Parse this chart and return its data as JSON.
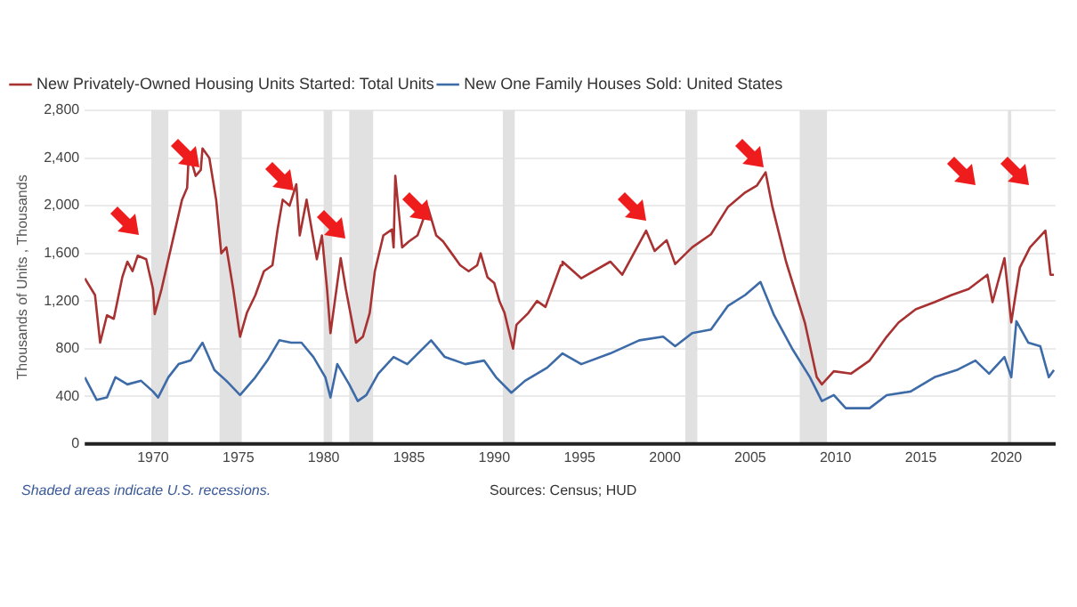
{
  "chart_data": {
    "type": "line",
    "ylabel": "Thousands of Units , Thousands",
    "xlim": [
      1966,
      2022.9
    ],
    "xticks": [
      1970,
      1975,
      1980,
      1985,
      1990,
      1995,
      2000,
      2005,
      2010,
      2015,
      2020
    ],
    "ylim": [
      0,
      2800
    ],
    "yticks": [
      {
        "value": 0,
        "label": "0"
      },
      {
        "value": 400,
        "label": "400"
      },
      {
        "value": 800,
        "label": "800"
      },
      {
        "value": 1200,
        "label": "1,200"
      },
      {
        "value": 1600,
        "label": "1,600"
      },
      {
        "value": 2000,
        "label": "2,000"
      },
      {
        "value": 2400,
        "label": "2,400"
      },
      {
        "value": 2800,
        "label": "2,800"
      }
    ],
    "grid": "y",
    "legend": "top left",
    "marker": "none",
    "line_style": "solid",
    "series": [
      {
        "name": "New Privately-Owned Housing Units Started: Total Units",
        "color": "#a83232",
        "x": [
          1966.0,
          1966.6,
          1966.9,
          1967.3,
          1967.7,
          1968.2,
          1968.5,
          1968.8,
          1969.1,
          1969.6,
          1970.0,
          1970.1,
          1970.5,
          1970.9,
          1971.3,
          1971.7,
          1972.0,
          1972.1,
          1972.5,
          1972.8,
          1972.9,
          1973.3,
          1973.7,
          1974.0,
          1974.3,
          1974.7,
          1975.0,
          1975.1,
          1975.5,
          1976.0,
          1976.5,
          1977.0,
          1977.3,
          1977.6,
          1978.0,
          1978.4,
          1978.6,
          1979.0,
          1979.3,
          1979.6,
          1979.9,
          1980.2,
          1980.4,
          1980.8,
          1981.0,
          1981.3,
          1981.7,
          1981.9,
          1982.3,
          1982.7,
          1983.0,
          1983.5,
          1984.0,
          1984.1,
          1984.2,
          1984.6,
          1985.0,
          1985.5,
          1986.1,
          1986.6,
          1987.0,
          1987.5,
          1988.0,
          1988.5,
          1989.0,
          1989.2,
          1989.6,
          1990.0,
          1990.3,
          1990.6,
          1991.1,
          1991.3,
          1992.0,
          1992.5,
          1993.0,
          1993.9,
          1994.0,
          1995.1,
          1996.8,
          1997.5,
          1998.9,
          1999.4,
          2000.1,
          2000.6,
          2001.6,
          2002.7,
          2003.7,
          2004.7,
          2005.4,
          2005.9,
          2006.3,
          2007.1,
          2008.2,
          2008.9,
          2009.2,
          2009.9,
          2010.9,
          2012.0,
          2013.0,
          2013.7,
          2014.7,
          2015.8,
          2016.8,
          2017.8,
          2018.9,
          2019.2,
          2019.9,
          2020.3,
          2020.8,
          2021.4,
          2022.3,
          2022.6,
          2022.8
        ],
        "values": [
          1390,
          1250,
          850,
          1080,
          1050,
          1400,
          1530,
          1450,
          1580,
          1550,
          1300,
          1090,
          1300,
          1550,
          1800,
          2050,
          2150,
          2450,
          2250,
          2300,
          2480,
          2400,
          2050,
          1600,
          1650,
          1300,
          1000,
          900,
          1100,
          1250,
          1450,
          1500,
          1800,
          2050,
          2000,
          2180,
          1750,
          2050,
          1800,
          1550,
          1750,
          1300,
          930,
          1350,
          1560,
          1300,
          1000,
          850,
          900,
          1100,
          1450,
          1750,
          1800,
          1650,
          2250,
          1650,
          1700,
          1750,
          1990,
          1750,
          1700,
          1600,
          1500,
          1450,
          1500,
          1600,
          1400,
          1350,
          1200,
          1100,
          800,
          1000,
          1100,
          1200,
          1150,
          1500,
          1530,
          1390,
          1530,
          1420,
          1790,
          1620,
          1710,
          1510,
          1650,
          1760,
          1990,
          2110,
          2170,
          2280,
          1990,
          1530,
          1020,
          560,
          500,
          610,
          590,
          700,
          900,
          1020,
          1130,
          1190,
          1250,
          1300,
          1420,
          1190,
          1560,
          1020,
          1480,
          1650,
          1790,
          1420,
          1420
        ]
      },
      {
        "name": "New One Family Houses Sold: United States",
        "color": "#3d6ba8",
        "x": [
          1966.0,
          1966.7,
          1967.3,
          1967.8,
          1968.5,
          1969.3,
          1970.0,
          1970.3,
          1970.9,
          1971.5,
          1972.2,
          1972.9,
          1973.6,
          1974.3,
          1975.1,
          1976.0,
          1976.7,
          1977.4,
          1978.1,
          1978.7,
          1979.4,
          1980.1,
          1980.4,
          1980.8,
          1981.5,
          1982.0,
          1982.5,
          1983.2,
          1984.1,
          1984.9,
          1986.3,
          1987.1,
          1988.3,
          1989.4,
          1990.1,
          1991.0,
          1991.8,
          1993.1,
          1994.0,
          1995.1,
          1996.8,
          1998.5,
          1999.9,
          2000.6,
          2001.6,
          2002.7,
          2003.7,
          2004.7,
          2005.6,
          2006.4,
          2007.5,
          2008.5,
          2009.2,
          2009.9,
          2010.6,
          2012.0,
          2013.0,
          2014.4,
          2015.8,
          2017.1,
          2018.2,
          2019.0,
          2019.9,
          2020.3,
          2020.6,
          2021.3,
          2022.0,
          2022.5,
          2022.8
        ],
        "values": [
          560,
          370,
          390,
          560,
          500,
          530,
          440,
          390,
          560,
          670,
          700,
          850,
          620,
          530,
          410,
          560,
          700,
          870,
          850,
          850,
          730,
          560,
          390,
          670,
          500,
          360,
          410,
          590,
          730,
          670,
          870,
          730,
          670,
          700,
          560,
          430,
          530,
          640,
          760,
          670,
          760,
          870,
          900,
          820,
          930,
          960,
          1160,
          1250,
          1360,
          1080,
          790,
          560,
          360,
          410,
          300,
          300,
          410,
          440,
          560,
          620,
          700,
          590,
          730,
          560,
          1030,
          850,
          820,
          560,
          620
        ]
      }
    ],
    "bands": [
      {
        "axis": "x",
        "from": 1969.9,
        "to": 1970.9,
        "color": "#e1e1e1"
      },
      {
        "axis": "x",
        "from": 1973.9,
        "to": 1975.2,
        "color": "#e1e1e1"
      },
      {
        "axis": "x",
        "from": 1980.0,
        "to": 1980.5,
        "color": "#e1e1e1"
      },
      {
        "axis": "x",
        "from": 1981.5,
        "to": 1982.9,
        "color": "#e1e1e1"
      },
      {
        "axis": "x",
        "from": 1990.5,
        "to": 1991.2,
        "color": "#e1e1e1"
      },
      {
        "axis": "x",
        "from": 2001.2,
        "to": 2001.9,
        "color": "#e1e1e1"
      },
      {
        "axis": "x",
        "from": 2007.9,
        "to": 2009.5,
        "color": "#e1e1e1"
      },
      {
        "axis": "x",
        "from": 2020.1,
        "to": 2020.3,
        "color": "#e1e1e1"
      }
    ],
    "annotations": [
      "Shaded areas indicate U.S. recessions.",
      "Sources: Census; HUD"
    ]
  }
}
